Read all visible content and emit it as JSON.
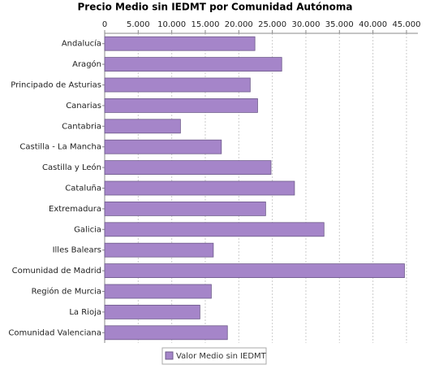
{
  "chart_data": {
    "type": "bar",
    "orientation": "horizontal",
    "title": "Precio Medio sin IEDMT por Comunidad Autónoma",
    "categories": [
      "Andalucía",
      "Aragón",
      "Principado de Asturias",
      "Canarias",
      "Cantabria",
      "Castilla - La Mancha",
      "Castilla y León",
      "Cataluña",
      "Extremadura",
      "Galicia",
      "Illes Balears",
      "Comunidad de Madrid",
      "Región de Murcia",
      "La Rioja",
      "Comunidad Valenciana"
    ],
    "series": [
      {
        "name": "Valor Medio sin IEDMT",
        "color": "#a585c9",
        "values": [
          22400,
          26400,
          21700,
          22800,
          11300,
          17400,
          24800,
          28300,
          24000,
          32700,
          16200,
          44700,
          15900,
          14200,
          18300
        ]
      }
    ],
    "xlim": [
      0,
      46700
    ],
    "xticks": [
      0,
      {
        "value": 5000,
        "label": "5.000"
      },
      {
        "value": 10000,
        "label": "10.000"
      },
      {
        "value": 15000,
        "label": "15.000"
      },
      {
        "value": 20000,
        "label": "20.000"
      },
      {
        "value": 25000,
        "label": "25.000"
      },
      {
        "value": 30000,
        "label": "30.000"
      },
      {
        "value": 35000,
        "label": "35.000"
      },
      {
        "value": 40000,
        "label": "40.000"
      },
      {
        "value": 45000,
        "label": "45.000"
      }
    ],
    "grid": true,
    "legend": "bottom"
  }
}
